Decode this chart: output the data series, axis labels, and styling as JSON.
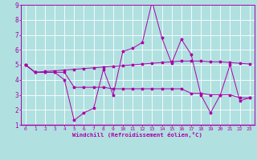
{
  "x": [
    0,
    1,
    2,
    3,
    4,
    5,
    6,
    7,
    8,
    9,
    10,
    11,
    12,
    13,
    14,
    15,
    16,
    17,
    18,
    19,
    20,
    21,
    22,
    23
  ],
  "line1": [
    5.0,
    4.5,
    4.5,
    4.5,
    4.0,
    1.3,
    1.8,
    2.1,
    4.7,
    3.0,
    5.9,
    6.1,
    6.5,
    9.2,
    6.8,
    5.1,
    6.7,
    5.7,
    3.0,
    1.8,
    3.0,
    5.0,
    2.6,
    2.8
  ],
  "line2": [
    5.0,
    4.5,
    4.55,
    4.6,
    4.65,
    4.7,
    4.75,
    4.8,
    4.85,
    4.9,
    4.95,
    5.0,
    5.05,
    5.1,
    5.15,
    5.2,
    5.25,
    5.25,
    5.25,
    5.2,
    5.2,
    5.15,
    5.1,
    5.05
  ],
  "line3": [
    5.0,
    4.5,
    4.5,
    4.5,
    4.5,
    3.5,
    3.5,
    3.5,
    3.5,
    3.4,
    3.4,
    3.4,
    3.4,
    3.4,
    3.4,
    3.4,
    3.4,
    3.1,
    3.1,
    3.0,
    3.0,
    3.0,
    2.8,
    2.8
  ],
  "line_color": "#aa00aa",
  "bg_color": "#b0e0e0",
  "grid_color": "#ffffff",
  "xlabel": "Windchill (Refroidissement éolien,°C)",
  "ylim": [
    1,
    9
  ],
  "xlim": [
    -0.5,
    23.5
  ],
  "yticks": [
    1,
    2,
    3,
    4,
    5,
    6,
    7,
    8,
    9
  ],
  "xticks": [
    0,
    1,
    2,
    3,
    4,
    5,
    6,
    7,
    8,
    9,
    10,
    11,
    12,
    13,
    14,
    15,
    16,
    17,
    18,
    19,
    20,
    21,
    22,
    23
  ]
}
